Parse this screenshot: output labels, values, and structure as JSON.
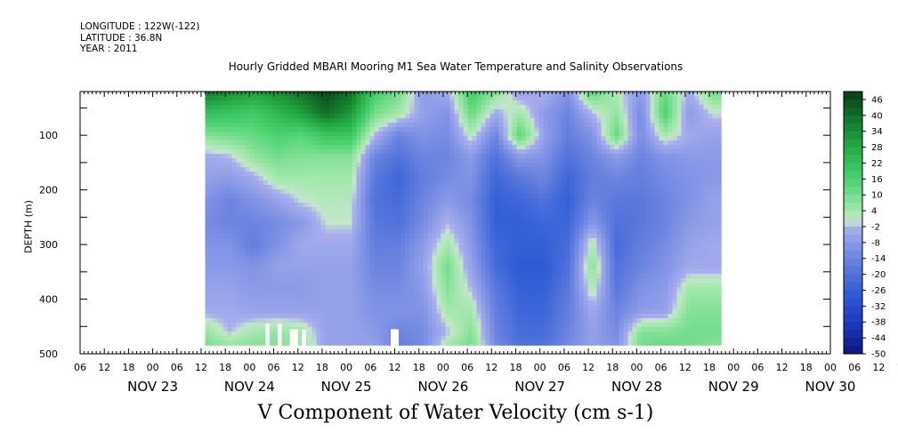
{
  "header": {
    "longitude_label": "LONGITUDE : 122W(-122)",
    "latitude_label": "LATITUDE : 36.8N",
    "year_label": "YEAR : 2011"
  },
  "chart_data": {
    "type": "heatmap",
    "title": "Hourly Gridded MBARI Mooring M1 Sea Water Temperature and Salinity Observations",
    "xlabel": "V Component of Water Velocity (cm s-1)",
    "ylabel": "DEPTH (m)",
    "y_ticks": [
      100,
      200,
      300,
      400,
      500
    ],
    "y_range": [
      20,
      500
    ],
    "x_hour_ticks": [
      "06",
      "12",
      "18",
      "00",
      "06",
      "12",
      "18",
      "00",
      "06",
      "12",
      "18",
      "00",
      "06",
      "12",
      "18",
      "00",
      "06",
      "12",
      "18",
      "00",
      "06",
      "12",
      "18",
      "00",
      "06",
      "12",
      "18",
      "00",
      "06",
      "12",
      "18",
      "00",
      "06",
      "12",
      "18",
      "00"
    ],
    "x_day_labels": [
      "NOV 23",
      "NOV 24",
      "NOV 25",
      "NOV 26",
      "NOV 27",
      "NOV 28",
      "NOV 29",
      "NOV 30"
    ],
    "colorbar": {
      "labels": [
        "46",
        "40",
        "34",
        "28",
        "22",
        "16",
        "10",
        "4",
        "-2",
        "-8",
        "-14",
        "-20",
        "-26",
        "-32",
        "-38",
        "-44",
        "-50"
      ],
      "range": [
        -50,
        49
      ]
    },
    "data_extent": {
      "start": "NOV 23 13:00",
      "end": "NOV 28 21:00",
      "depth_top": 20,
      "depth_bottom": 485
    },
    "depth_levels": [
      20,
      60,
      100,
      140,
      180,
      220,
      260,
      300,
      340,
      380,
      420,
      460,
      485
    ],
    "columns": [
      {
        "t": "NOV 23 13:00",
        "v": [
          38,
          22,
          8,
          -4,
          -6,
          -10,
          -12,
          -10,
          -8,
          -6,
          -4,
          6,
          10
        ]
      },
      {
        "t": "NOV 23 19:00",
        "v": [
          34,
          20,
          10,
          -2,
          -8,
          -14,
          -14,
          -10,
          -8,
          -6,
          -4,
          -2,
          6
        ]
      },
      {
        "t": "NOV 24 01:00",
        "v": [
          30,
          18,
          12,
          6,
          -4,
          -10,
          -14,
          -16,
          -10,
          -8,
          -6,
          4,
          8
        ]
      },
      {
        "t": "NOV 24 07:00",
        "v": [
          34,
          24,
          16,
          10,
          4,
          -6,
          -12,
          -10,
          -6,
          -8,
          -6,
          6,
          8
        ]
      },
      {
        "t": "NOV 24 13:00",
        "v": [
          40,
          30,
          14,
          8,
          4,
          0,
          -8,
          -4,
          -6,
          -8,
          -6,
          4,
          6
        ]
      },
      {
        "t": "NOV 24 19:00",
        "v": [
          46,
          40,
          20,
          8,
          4,
          2,
          0,
          -4,
          -6,
          -6,
          -6,
          -6,
          -6
        ]
      },
      {
        "t": "NOV 25 01:00",
        "v": [
          40,
          32,
          20,
          8,
          4,
          2,
          0,
          -4,
          -6,
          -6,
          -6,
          -6,
          -6
        ]
      },
      {
        "t": "NOV 25 07:00",
        "v": [
          18,
          10,
          -2,
          -14,
          -18,
          -20,
          -18,
          -16,
          -14,
          -12,
          -10,
          -8,
          -6
        ]
      },
      {
        "t": "NOV 25 13:00",
        "v": [
          10,
          4,
          -14,
          -20,
          -24,
          -22,
          -20,
          -16,
          -14,
          -12,
          -10,
          -14,
          -16
        ]
      },
      {
        "t": "NOV 25 19:00",
        "v": [
          -8,
          -6,
          -10,
          -14,
          -16,
          -14,
          -12,
          -8,
          -6,
          -8,
          -10,
          -12,
          -12
        ]
      },
      {
        "t": "NOV 26 01:00",
        "v": [
          -4,
          -10,
          -12,
          -14,
          -12,
          -8,
          -2,
          4,
          10,
          8,
          4,
          -2,
          4
        ]
      },
      {
        "t": "NOV 26 07:00",
        "v": [
          18,
          12,
          2,
          -8,
          -10,
          -12,
          -10,
          -8,
          -6,
          -2,
          4,
          8,
          10
        ]
      },
      {
        "t": "NOV 26 13:00",
        "v": [
          8,
          -4,
          -14,
          -20,
          -24,
          -26,
          -26,
          -24,
          -22,
          -18,
          -16,
          -14,
          -12
        ]
      },
      {
        "t": "NOV 26 19:00",
        "v": [
          -6,
          4,
          14,
          -8,
          -18,
          -24,
          -26,
          -26,
          -28,
          -26,
          -24,
          -22,
          -20
        ]
      },
      {
        "t": "NOV 27 01:00",
        "v": [
          -2,
          -8,
          -6,
          -10,
          -14,
          -20,
          -24,
          -26,
          -28,
          -26,
          -24,
          -22,
          -20
        ]
      },
      {
        "t": "NOV 27 07:00",
        "v": [
          -10,
          -14,
          -16,
          -20,
          -24,
          -26,
          -24,
          -22,
          -20,
          -18,
          -16,
          -14,
          -12
        ]
      },
      {
        "t": "NOV 27 13:00",
        "v": [
          14,
          -2,
          -10,
          -14,
          -16,
          -14,
          -8,
          4,
          8,
          4,
          -4,
          -6,
          -6
        ]
      },
      {
        "t": "NOV 27 19:00",
        "v": [
          2,
          6,
          12,
          -8,
          -14,
          -18,
          -20,
          -22,
          -20,
          -18,
          -14,
          -12,
          -10
        ]
      },
      {
        "t": "NOV 28 01:00",
        "v": [
          -8,
          -12,
          -12,
          -14,
          -16,
          -18,
          -18,
          -16,
          -14,
          -10,
          -8,
          8,
          10
        ]
      },
      {
        "t": "NOV 28 07:00",
        "v": [
          12,
          16,
          4,
          -10,
          -12,
          -14,
          -14,
          -12,
          -10,
          -8,
          -6,
          8,
          12
        ]
      },
      {
        "t": "NOV 28 13:00",
        "v": [
          -4,
          -8,
          -4,
          -8,
          -10,
          -10,
          -8,
          -6,
          -4,
          4,
          8,
          10,
          10
        ]
      },
      {
        "t": "NOV 28 19:00",
        "v": [
          10,
          0,
          -6,
          -8,
          -8,
          -6,
          -6,
          -4,
          -4,
          4,
          8,
          10,
          8
        ]
      }
    ],
    "missing_cells": [
      {
        "start": "NOV 24 04:00",
        "end": "NOV 24 05:00",
        "depth_top": 445
      },
      {
        "start": "NOV 24 07:00",
        "end": "NOV 24 08:00",
        "depth_top": 445
      },
      {
        "start": "NOV 24 10:00",
        "end": "NOV 24 12:00",
        "depth_top": 455
      },
      {
        "start": "NOV 24 13:00",
        "end": "NOV 24 14:00",
        "depth_top": 455
      },
      {
        "start": "NOV 25 11:00",
        "end": "NOV 25 13:00",
        "depth_top": 455
      }
    ]
  }
}
